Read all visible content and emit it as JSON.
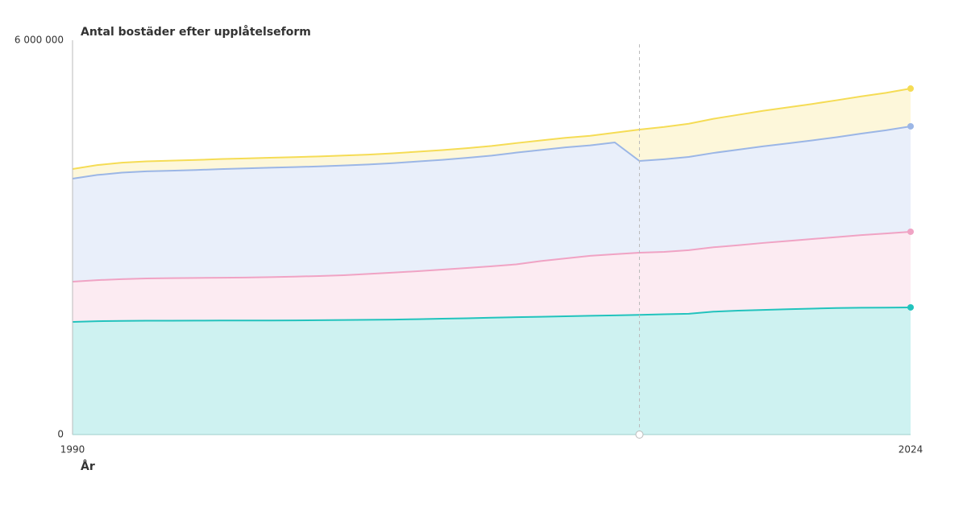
{
  "chart_data": {
    "type": "stacked-area",
    "title": "Antal bostäder efter upplåtelseform",
    "x_label": "År",
    "x": [
      1990,
      1991,
      1992,
      1993,
      1994,
      1995,
      1996,
      1997,
      1998,
      1999,
      2000,
      2001,
      2002,
      2003,
      2004,
      2005,
      2006,
      2007,
      2008,
      2009,
      2010,
      2011,
      2012,
      2013,
      2014,
      2015,
      2016,
      2017,
      2018,
      2019,
      2020,
      2021,
      2022,
      2023,
      2024
    ],
    "xlim": [
      1990,
      2024
    ],
    "xticks": [
      1990,
      2024
    ],
    "ylim": [
      0,
      6000000
    ],
    "yticks": [
      0,
      {
        "value": 6000000,
        "label": "6 000 000"
      }
    ],
    "crosshair_x": 2013,
    "series": [
      {
        "color": "#22c3bd",
        "values": [
          1714000,
          1725000,
          1730000,
          1732000,
          1733000,
          1734000,
          1735000,
          1735000,
          1736000,
          1738000,
          1740000,
          1743000,
          1746000,
          1750000,
          1756000,
          1763000,
          1770000,
          1778000,
          1786000,
          1793000,
          1800000,
          1807000,
          1814000,
          1822000,
          1830000,
          1838000,
          1870000,
          1885000,
          1897000,
          1907000,
          1917000,
          1926000,
          1930000,
          1932000,
          1935000
        ]
      },
      {
        "color": "#f0a3c4",
        "values": [
          613000,
          625000,
          635000,
          643000,
          647000,
          649000,
          651000,
          655000,
          659000,
          665000,
          673000,
          682000,
          699000,
          715000,
          729000,
          747000,
          765000,
          782000,
          804000,
          847000,
          880000,
          913000,
          931000,
          945000,
          950000,
          967000,
          980000,
          995000,
          1018000,
          1038000,
          1058000,
          1079000,
          1105000,
          1128000,
          1151000
        ]
      },
      {
        "color": "#9bb6e6",
        "values": [
          1567000,
          1600000,
          1620000,
          1630000,
          1635000,
          1642000,
          1654000,
          1660000,
          1665000,
          1667000,
          1667000,
          1670000,
          1665000,
          1665000,
          1670000,
          1670000,
          1675000,
          1685000,
          1700000,
          1690000,
          1690000,
          1680000,
          1700000,
          1396000,
          1410000,
          1420000,
          1435000,
          1455000,
          1470000,
          1485000,
          1500000,
          1520000,
          1545000,
          1570000,
          1604000
        ]
      },
      {
        "color": "#f5dc55",
        "values": [
          147000,
          150000,
          152000,
          152000,
          153000,
          153000,
          153000,
          152000,
          152000,
          152000,
          152000,
          151000,
          150000,
          150000,
          149000,
          148000,
          147000,
          146000,
          145000,
          145000,
          145000,
          146000,
          148000,
          478000,
          490000,
          505000,
          520000,
          530000,
          540000,
          548000,
          555000,
          562000,
          566000,
          570000,
          575000
        ]
      }
    ]
  }
}
